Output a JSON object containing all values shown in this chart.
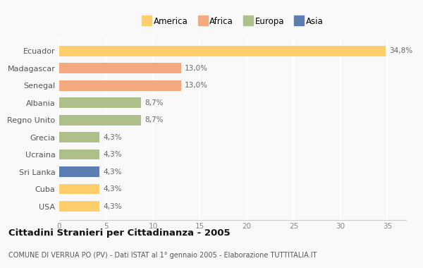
{
  "countries": [
    "Ecuador",
    "Madagascar",
    "Senegal",
    "Albania",
    "Regno Unito",
    "Grecia",
    "Ucraina",
    "Sri Lanka",
    "Cuba",
    "USA"
  ],
  "values": [
    34.8,
    13.0,
    13.0,
    8.7,
    8.7,
    4.3,
    4.3,
    4.3,
    4.3,
    4.3
  ],
  "labels": [
    "34,8%",
    "13,0%",
    "13,0%",
    "8,7%",
    "8,7%",
    "4,3%",
    "4,3%",
    "4,3%",
    "4,3%",
    "4,3%"
  ],
  "continents": [
    "America",
    "Africa",
    "Africa",
    "Europa",
    "Europa",
    "Europa",
    "Europa",
    "Asia",
    "America",
    "America"
  ],
  "colors": {
    "America": "#FDCE6B",
    "Africa": "#F4A97F",
    "Europa": "#AEBF8A",
    "Asia": "#5B7DB1"
  },
  "legend_order": [
    "America",
    "Africa",
    "Europa",
    "Asia"
  ],
  "legend_colors": {
    "America": "#FDCE6B",
    "Africa": "#F4A97F",
    "Europa": "#AEBF8A",
    "Asia": "#5B7DB1"
  },
  "title": "Cittadini Stranieri per Cittadinanza - 2005",
  "subtitle": "COMUNE DI VERRUA PO (PV) - Dati ISTAT al 1° gennaio 2005 - Elaborazione TUTTITALIA.IT",
  "xlim": [
    0,
    37
  ],
  "xticks": [
    0,
    5,
    10,
    15,
    20,
    25,
    30,
    35
  ],
  "background_color": "#f9f9f9",
  "grid_color": "#ffffff"
}
